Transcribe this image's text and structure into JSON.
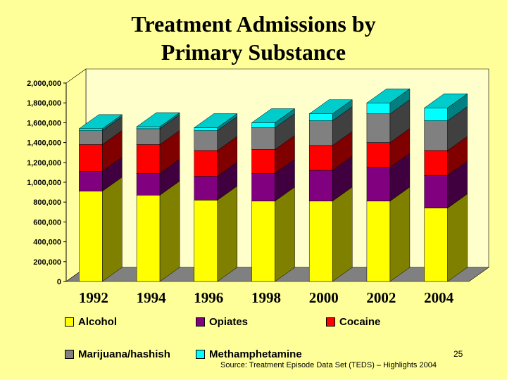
{
  "slide": {
    "title_line1": "Treatment Admissions by",
    "title_line2": "Primary Substance",
    "page_number": "25",
    "source": "Source: Treatment Episode Data Set (TEDS) – Highlights 2004"
  },
  "chart_data": {
    "type": "bar",
    "stacked": true,
    "three_d": true,
    "categories": [
      "1992",
      "1994",
      "1996",
      "1998",
      "2000",
      "2002",
      "2004"
    ],
    "y_tick_labels": [
      "0",
      "200,000",
      "400,000",
      "600,000",
      "800,000",
      "1,000,000",
      "1,200,000",
      "1,400,000",
      "1,600,000",
      "1,800,000",
      "2,000,000"
    ],
    "ylim": [
      0,
      2000000
    ],
    "grid": false,
    "legend_position": "bottom",
    "series": [
      {
        "name": "Alcohol",
        "color": "#FFFF00",
        "values": [
          910000,
          870000,
          820000,
          810000,
          810000,
          810000,
          740000
        ]
      },
      {
        "name": "Opiates",
        "color": "#800080",
        "values": [
          200000,
          220000,
          240000,
          280000,
          310000,
          340000,
          330000
        ]
      },
      {
        "name": "Cocaine",
        "color": "#FF0000",
        "values": [
          270000,
          290000,
          260000,
          240000,
          250000,
          250000,
          250000
        ]
      },
      {
        "name": "Marijuana/hashish",
        "color": "#808080",
        "values": [
          140000,
          160000,
          200000,
          220000,
          250000,
          290000,
          300000
        ]
      },
      {
        "name": "Methamphetamine",
        "color": "#00FFFF",
        "values": [
          20000,
          20000,
          30000,
          50000,
          70000,
          110000,
          130000
        ]
      }
    ]
  }
}
